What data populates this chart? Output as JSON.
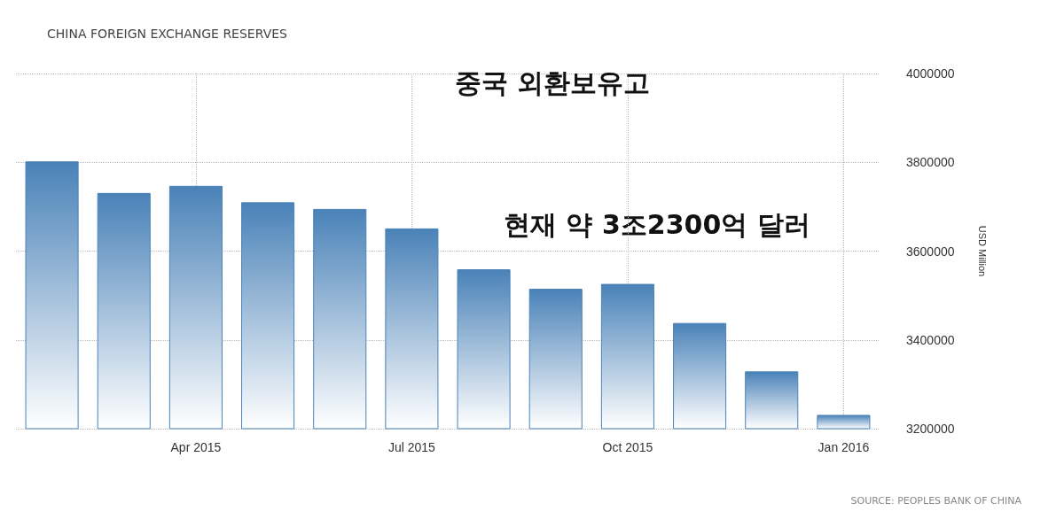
{
  "chart_data": {
    "type": "bar",
    "title": "CHINA FOREIGN EXCHANGE RESERVES",
    "subtitle": "중국 외환보유고",
    "ylabel": "USD Million",
    "annotations": [
      "현재 약 3조2300억 달러",
      "SOURCE: PEOPLES BANK OF CHINA"
    ],
    "categories": [
      null,
      null,
      "Apr 2015",
      null,
      null,
      "Jul 2015",
      null,
      null,
      "Oct 2015",
      null,
      null,
      "Jan 2016"
    ],
    "values": [
      3802000,
      3731000,
      3747000,
      3710000,
      3695000,
      3651000,
      3559000,
      3515000,
      3526000,
      3438000,
      3329000,
      3231000
    ],
    "color": "#4a82b8",
    "ylim": [
      3200000,
      4000000
    ],
    "yticks": [
      3200000,
      3400000,
      3600000,
      3800000,
      4000000
    ],
    "grid": true
  }
}
